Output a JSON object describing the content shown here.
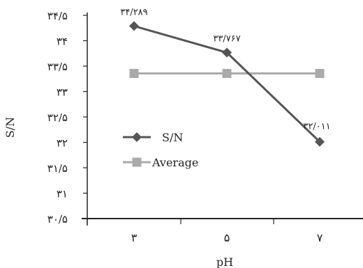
{
  "chart_data": {
    "type": "line",
    "xlabel": "pH",
    "ylabel": "S/N",
    "ylim": [
      30.5,
      34.5
    ],
    "y_ticks": [
      30.5,
      31,
      31.5,
      32,
      32.5,
      33,
      33.5,
      34,
      34.5
    ],
    "y_tick_labels": [
      "۳۰/۵",
      "۳۱",
      "۳۱/۵",
      "۳۲",
      "۳۲/۵",
      "۳۳",
      "۳۳/۵",
      "۳۴",
      "۳۴/۵"
    ],
    "categories": [
      "۳",
      "۵",
      "۷"
    ],
    "series": [
      {
        "name": "S/N",
        "values": [
          34.289,
          33.767,
          32.011
        ],
        "data_labels": [
          "۳۴/۲۸۹",
          "۳۳/۷۶۷",
          "۳۲/۰۱۱"
        ],
        "color": "#555555",
        "marker": "diamond"
      },
      {
        "name": "Average",
        "values": [
          33.356,
          33.356,
          33.356
        ],
        "color": "#aaaaaa",
        "marker": "square"
      }
    ],
    "legend_position": "center-left",
    "grid": false
  }
}
